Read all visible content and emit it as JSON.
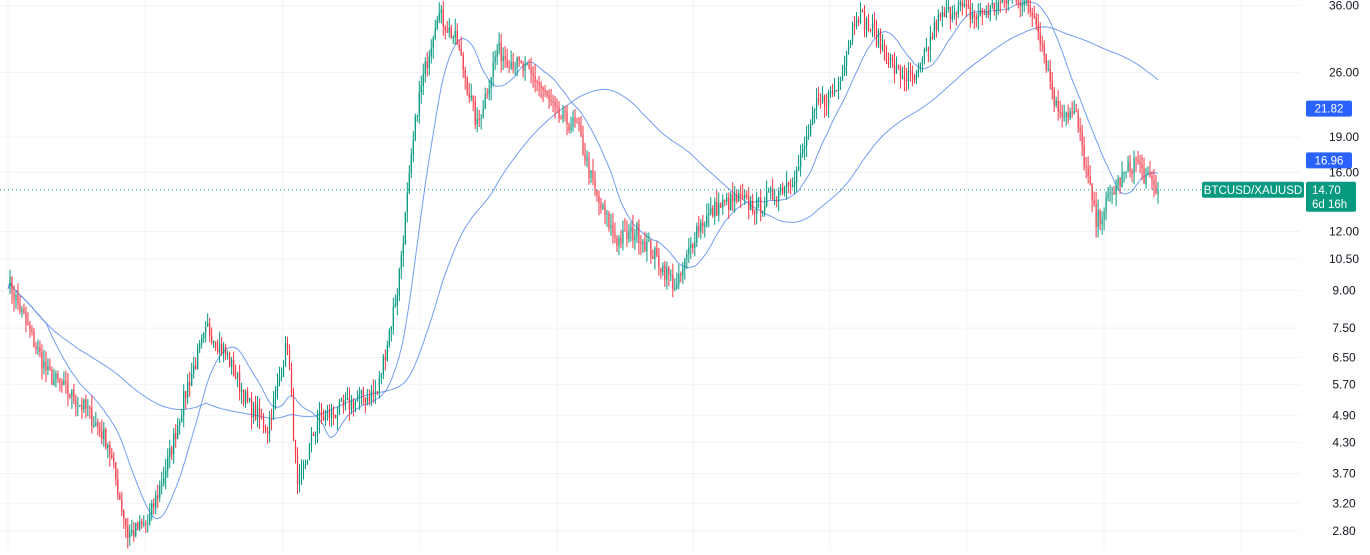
{
  "chart_data": {
    "type": "candlestick",
    "symbol": "BTCUSD/XAUUSD",
    "scale": "log",
    "ylim": [
      2.55,
      37
    ],
    "y_axis_ticks": [
      "2.80",
      "3.20",
      "3.70",
      "4.30",
      "4.90",
      "5.70",
      "6.50",
      "7.50",
      "9.00",
      "10.50",
      "12.00",
      "16.00",
      "19.00",
      "26.00",
      "36.00"
    ],
    "grid": true,
    "last_price": {
      "value": 14.7,
      "label": "14.70",
      "countdown": "6d 16h",
      "color": "#089981"
    },
    "ma_badges": [
      {
        "value": 21.82,
        "label": "21.82",
        "color": "#2962ff"
      },
      {
        "value": 16.96,
        "label": "16.96",
        "color": "#2962ff"
      }
    ],
    "colors": {
      "up": "#089981",
      "down": "#f23645",
      "ma": "#5b8def",
      "grid": "#f0f3fa"
    },
    "price_anchors": [
      [
        0,
        9.5
      ],
      [
        10,
        7.5
      ],
      [
        20,
        6.0
      ],
      [
        30,
        5.5
      ],
      [
        40,
        5.0
      ],
      [
        50,
        4.3
      ],
      [
        60,
        2.75
      ],
      [
        70,
        2.9
      ],
      [
        80,
        3.9
      ],
      [
        90,
        5.7
      ],
      [
        100,
        7.5
      ],
      [
        110,
        6.5
      ],
      [
        120,
        5.2
      ],
      [
        130,
        4.6
      ],
      [
        140,
        7.0
      ],
      [
        145,
        3.4
      ],
      [
        155,
        4.8
      ],
      [
        165,
        5.0
      ],
      [
        175,
        5.3
      ],
      [
        185,
        5.5
      ],
      [
        195,
        9.0
      ],
      [
        205,
        22
      ],
      [
        215,
        35
      ],
      [
        225,
        30
      ],
      [
        235,
        20
      ],
      [
        245,
        29
      ],
      [
        255,
        27
      ],
      [
        265,
        25
      ],
      [
        275,
        21
      ],
      [
        285,
        20
      ],
      [
        295,
        14
      ],
      [
        305,
        11.5
      ],
      [
        315,
        12
      ],
      [
        325,
        10.5
      ],
      [
        335,
        9.1
      ],
      [
        345,
        12.2
      ],
      [
        355,
        13.5
      ],
      [
        365,
        14
      ],
      [
        375,
        13.5
      ],
      [
        385,
        14.5
      ],
      [
        395,
        16
      ],
      [
        405,
        22
      ],
      [
        415,
        24
      ],
      [
        425,
        35
      ],
      [
        435,
        31
      ],
      [
        445,
        26
      ],
      [
        455,
        25
      ],
      [
        465,
        33
      ],
      [
        475,
        36
      ],
      [
        485,
        34
      ],
      [
        495,
        36
      ],
      [
        505,
        38
      ],
      [
        515,
        34
      ],
      [
        525,
        22
      ],
      [
        535,
        21
      ],
      [
        545,
        12.5
      ],
      [
        555,
        15
      ],
      [
        565,
        17
      ],
      [
        570,
        15.5
      ],
      [
        576,
        14.7
      ]
    ]
  }
}
